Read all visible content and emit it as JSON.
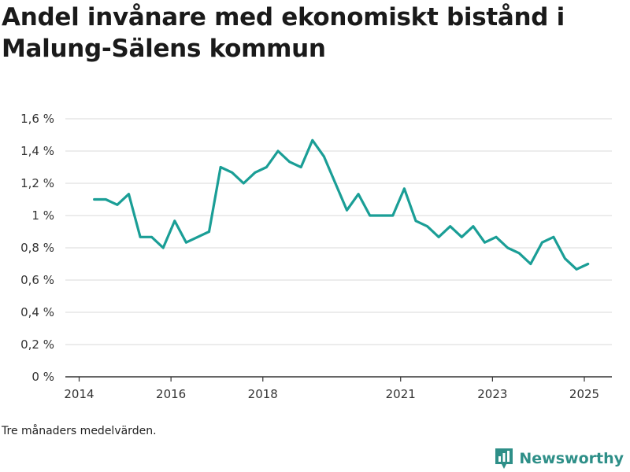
{
  "chart_data": {
    "type": "line",
    "title": "Andel invånare med ekonomiskt bistånd i Malung-Sälens kommun",
    "xlabel": "",
    "ylabel": "",
    "ylim": [
      0,
      1.6
    ],
    "yticks": [
      0,
      0.2,
      0.4,
      0.6,
      0.8,
      1.0,
      1.2,
      1.4,
      1.6
    ],
    "ytick_labels": [
      "0 %",
      "0,2 %",
      "0,4 %",
      "0,6 %",
      "0,8 %",
      "1 %",
      "1,2 %",
      "1,4 %",
      "1,6 %"
    ],
    "xlim": [
      2013.7,
      2025.6
    ],
    "xticks": [
      2014,
      2016,
      2018,
      2021,
      2023,
      2025
    ],
    "xtick_labels": [
      "2014",
      "2016",
      "2018",
      "2021",
      "2023",
      "2025"
    ],
    "grid": true,
    "legend": "none",
    "color": "#1a9e96",
    "series": [
      {
        "x": [
          2014.33,
          2014.58,
          2014.83,
          2015.08,
          2015.33,
          2015.58,
          2015.83,
          2016.08,
          2016.33,
          2016.58,
          2016.83,
          2017.08,
          2017.33,
          2017.58,
          2017.83,
          2018.08,
          2018.33,
          2018.58,
          2018.83,
          2019.08,
          2019.33,
          2019.58,
          2019.83,
          2020.08,
          2020.33,
          2020.58,
          2020.83,
          2021.08,
          2021.33,
          2021.58,
          2021.83,
          2022.08,
          2022.33,
          2022.58,
          2022.83,
          2023.08,
          2023.33,
          2023.58,
          2023.83,
          2024.08,
          2024.33,
          2024.58,
          2024.83,
          2025.08
        ],
        "values": [
          1.1,
          1.1,
          1.067,
          1.133,
          0.867,
          0.867,
          0.8,
          0.967,
          0.833,
          0.867,
          0.9,
          1.3,
          1.267,
          1.2,
          1.267,
          1.3,
          1.4,
          1.333,
          1.3,
          1.467,
          1.367,
          1.2,
          1.033,
          1.133,
          1.0,
          1.0,
          1.0,
          1.167,
          0.967,
          0.933,
          0.867,
          0.933,
          0.867,
          0.933,
          0.833,
          0.867,
          0.8,
          0.767,
          0.7,
          0.833,
          0.867,
          0.733,
          0.667,
          0.7
        ]
      }
    ]
  },
  "footer": {
    "note": "Tre månaders medelvärden.",
    "brand": "Newsworthy",
    "brand_color": "#2e8f88"
  }
}
